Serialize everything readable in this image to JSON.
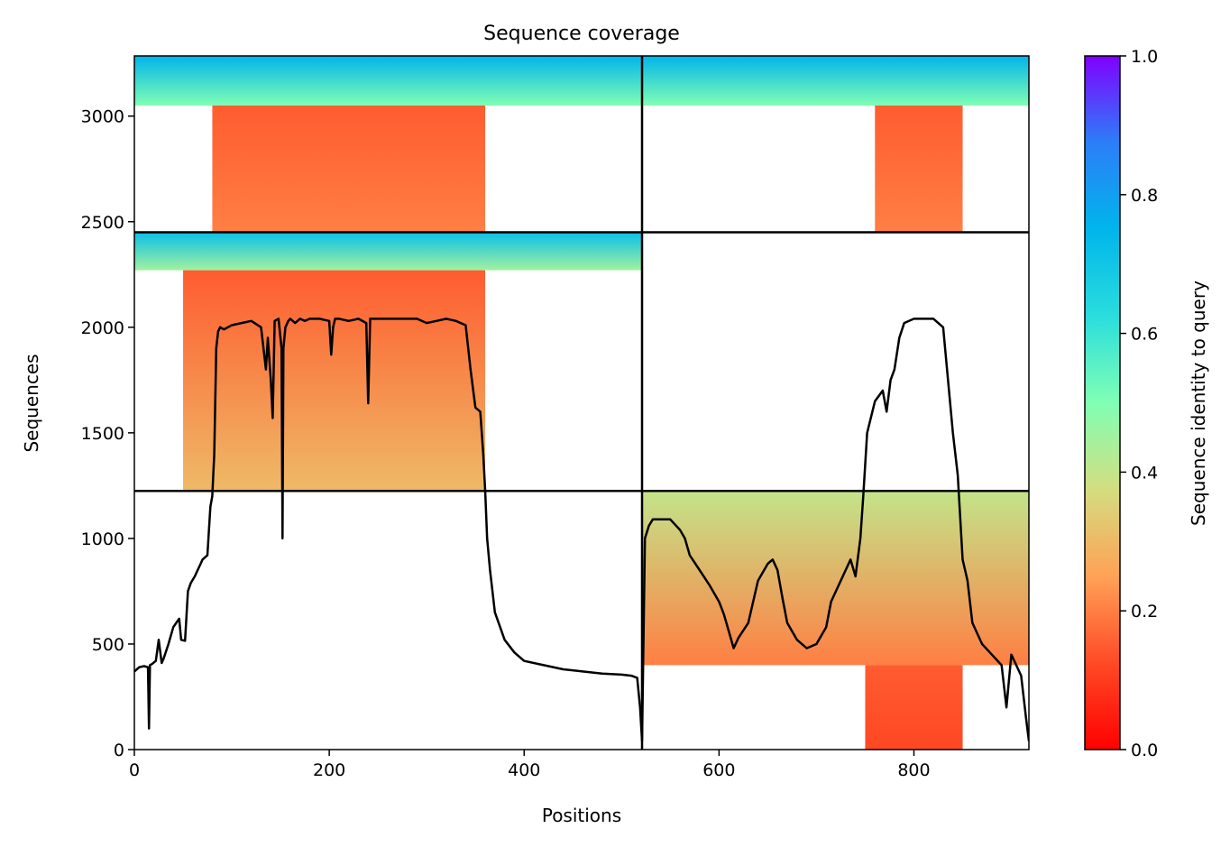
{
  "chart_data": {
    "type": "heatmap",
    "title": "Sequence coverage",
    "xlabel": "Positions",
    "ylabel": "Sequences",
    "xlim": [
      0,
      918
    ],
    "ylim": [
      0,
      3285
    ],
    "x_ticks": [
      0,
      200,
      400,
      600,
      800
    ],
    "y_ticks": [
      0,
      500,
      1000,
      1500,
      2000,
      2500,
      3000
    ],
    "colorbar": {
      "label": "Sequence identity to query",
      "colormap": "rainbow_r",
      "range": [
        0,
        1
      ],
      "ticks": [
        0.0,
        0.2,
        0.4,
        0.6,
        0.8,
        1.0
      ],
      "tick_labels": [
        "0.0",
        "0.2",
        "0.4",
        "0.6",
        "0.8",
        "1.0"
      ]
    },
    "dividers": {
      "x": [
        521
      ],
      "y": [
        1225,
        2450
      ]
    },
    "coverage_blocks": [
      {
        "x": [
          0,
          521
        ],
        "y": [
          3050,
          3285
        ],
        "identity": [
          0.5,
          0.75
        ]
      },
      {
        "x": [
          80,
          360
        ],
        "y": [
          2450,
          3050
        ],
        "identity": [
          0.2,
          0.15
        ]
      },
      {
        "x": [
          521,
          918
        ],
        "y": [
          3050,
          3285
        ],
        "identity": [
          0.5,
          0.75
        ]
      },
      {
        "x": [
          760,
          850
        ],
        "y": [
          2450,
          3050
        ],
        "identity": [
          0.2,
          0.15
        ]
      },
      {
        "x": [
          0,
          521
        ],
        "y": [
          2270,
          2450
        ],
        "identity": [
          0.45,
          0.72
        ]
      },
      {
        "x": [
          50,
          360
        ],
        "y": [
          1225,
          2270
        ],
        "identity": [
          0.3,
          0.15
        ]
      },
      {
        "x": [
          521,
          918
        ],
        "y": [
          400,
          1225
        ],
        "identity": [
          0.2,
          0.4
        ]
      },
      {
        "x": [
          750,
          850
        ],
        "y": [
          0,
          400
        ],
        "identity": [
          0.12,
          0.15
        ]
      }
    ],
    "series": [
      {
        "type": "line",
        "x": [
          0,
          5,
          10,
          14,
          15,
          16,
          18,
          22,
          25,
          28,
          30,
          35,
          40,
          43,
          46,
          48,
          52,
          55,
          58,
          62,
          65,
          68,
          70,
          75,
          78,
          80,
          82,
          84,
          86,
          88,
          92,
          96,
          100,
          110,
          120,
          130,
          135,
          137,
          140,
          142,
          144,
          148,
          151,
          152,
          153,
          155,
          158,
          160,
          165,
          170,
          175,
          180,
          190,
          200,
          202,
          204,
          206,
          210,
          220,
          230,
          238,
          240,
          242,
          245,
          250,
          260,
          270,
          280,
          290,
          300,
          310,
          320,
          330,
          340,
          345,
          350,
          355,
          358,
          360,
          362,
          365,
          370,
          380,
          390,
          400,
          420,
          440,
          460,
          480,
          500,
          510,
          516,
          519,
          521,
          524,
          528,
          532,
          540,
          550,
          560,
          565,
          570,
          580,
          590,
          600,
          605,
          610,
          615,
          620,
          630,
          640,
          650,
          655,
          660,
          665,
          670,
          680,
          690,
          700,
          710,
          715,
          720,
          725,
          730,
          735,
          740,
          745,
          748,
          752,
          760,
          768,
          772,
          776,
          780,
          785,
          790,
          800,
          810,
          820,
          830,
          840,
          845,
          850,
          855,
          860,
          870,
          880,
          890,
          895,
          900,
          905,
          910,
          915,
          918
        ],
        "values": [
          370,
          390,
          395,
          390,
          100,
          400,
          405,
          420,
          520,
          410,
          430,
          500,
          580,
          600,
          620,
          520,
          515,
          750,
          790,
          820,
          850,
          880,
          900,
          920,
          1150,
          1200,
          1400,
          1900,
          1980,
          2000,
          1990,
          2000,
          2010,
          2020,
          2030,
          2000,
          1800,
          1950,
          1750,
          1570,
          2030,
          2040,
          1900,
          1000,
          1900,
          2000,
          2030,
          2040,
          2020,
          2040,
          2030,
          2040,
          2040,
          2030,
          1870,
          2000,
          2040,
          2040,
          2030,
          2040,
          2020,
          1640,
          2040,
          2040,
          2040,
          2040,
          2040,
          2040,
          2040,
          2020,
          2030,
          2040,
          2030,
          2010,
          1800,
          1620,
          1600,
          1400,
          1230,
          1000,
          850,
          650,
          520,
          460,
          420,
          400,
          380,
          370,
          360,
          355,
          350,
          340,
          200,
          40,
          1000,
          1060,
          1090,
          1090,
          1090,
          1040,
          1000,
          920,
          850,
          780,
          700,
          640,
          560,
          480,
          530,
          600,
          800,
          880,
          900,
          850,
          720,
          600,
          520,
          480,
          500,
          580,
          700,
          750,
          800,
          850,
          900,
          820,
          1000,
          1200,
          1500,
          1650,
          1700,
          1600,
          1750,
          1800,
          1950,
          2020,
          2040,
          2040,
          2040,
          2000,
          1500,
          1300,
          900,
          800,
          600,
          500,
          450,
          400,
          200,
          450,
          400,
          350,
          150,
          40
        ]
      }
    ]
  }
}
